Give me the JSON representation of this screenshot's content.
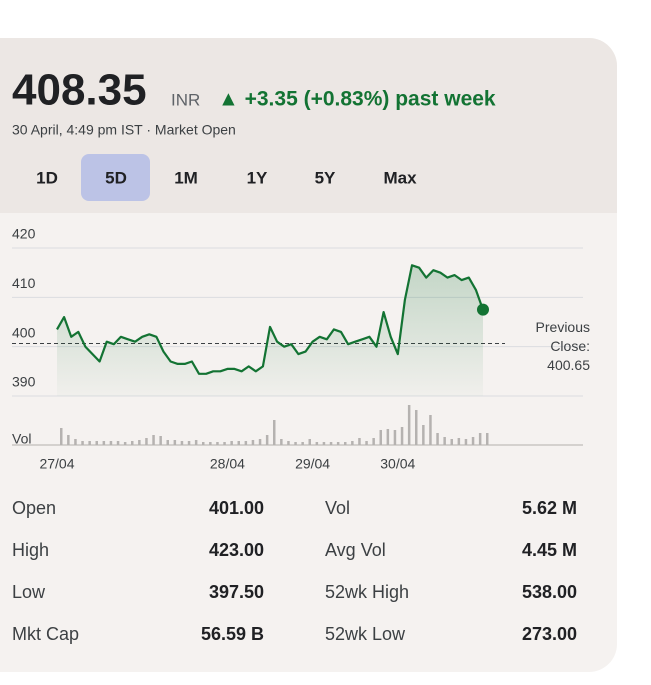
{
  "quote": {
    "price": "408.35",
    "currency": "INR",
    "change": "▲ +3.35 (+0.83%) past week",
    "timestamp": "30 April, 4:49 pm IST · Market Open"
  },
  "tabs": [
    "1D",
    "5D",
    "1M",
    "1Y",
    "5Y",
    "Max"
  ],
  "selected_tab": 1,
  "chart_data": {
    "type": "line",
    "categories": [
      "27/04",
      null,
      null,
      null,
      null,
      null,
      null,
      null,
      null,
      null,
      null,
      null,
      null,
      null,
      null,
      null,
      null,
      null,
      null,
      null,
      null,
      null,
      null,
      null,
      "28/04",
      null,
      null,
      null,
      null,
      null,
      null,
      null,
      null,
      null,
      null,
      null,
      "29/04",
      null,
      null,
      null,
      null,
      null,
      null,
      null,
      null,
      null,
      null,
      null,
      "30/04",
      null,
      null,
      null,
      null,
      null,
      null,
      null,
      null,
      null,
      null,
      null,
      null
    ],
    "series": [
      {
        "color": "#137333",
        "values": [
          403.5,
          406,
          402,
          403,
          400,
          398.5,
          397,
          401,
          400.5,
          402,
          401.5,
          401,
          402,
          402.5,
          402,
          399,
          397,
          396.5,
          396.5,
          397,
          394.5,
          394.5,
          395,
          395,
          395.5,
          395.5,
          395,
          396,
          395,
          396,
          404,
          401,
          400,
          400.5,
          398.5,
          399,
          401,
          402,
          401.5,
          403.5,
          403,
          400.5,
          401,
          401.5,
          402,
          400,
          407,
          402,
          398.5,
          409.5,
          416.5,
          416,
          414,
          415.5,
          415,
          414,
          414.5,
          413.5,
          414,
          411.5,
          407.5
        ]
      }
    ],
    "volume": {
      "label": "Vol",
      "color": "#b5b2b0",
      "values": [
        0.85,
        0.5,
        0.3,
        0.2,
        0.2,
        0.2,
        0.2,
        0.2,
        0.2,
        0.15,
        0.2,
        0.25,
        0.35,
        0.5,
        0.45,
        0.25,
        0.25,
        0.2,
        0.2,
        0.25,
        0.15,
        0.15,
        0.15,
        0.15,
        0.2,
        0.2,
        0.2,
        0.25,
        0.3,
        0.5,
        1.25,
        0.3,
        0.2,
        0.15,
        0.15,
        0.3,
        0.15,
        0.15,
        0.15,
        0.15,
        0.15,
        0.2,
        0.35,
        0.2,
        0.35,
        0.75,
        0.8,
        0.75,
        0.9,
        2.0,
        1.75,
        1.0,
        1.5,
        0.6,
        0.4,
        0.3,
        0.35,
        0.3,
        0.4,
        0.6,
        0.6
      ]
    },
    "previous_close": {
      "label": "Previous Close:",
      "value": 400.65
    },
    "ylim": [
      390,
      420
    ],
    "yticks": [
      390,
      400,
      410,
      420
    ],
    "grid": true
  },
  "stats": [
    [
      "Open",
      "401.00",
      "Vol",
      "5.62 M"
    ],
    [
      "High",
      "423.00",
      "Avg Vol",
      "4.45 M"
    ],
    [
      "Low",
      "397.50",
      "52wk High",
      "538.00"
    ],
    [
      "Mkt Cap",
      "56.59 B",
      "52wk Low",
      "273.00"
    ]
  ]
}
